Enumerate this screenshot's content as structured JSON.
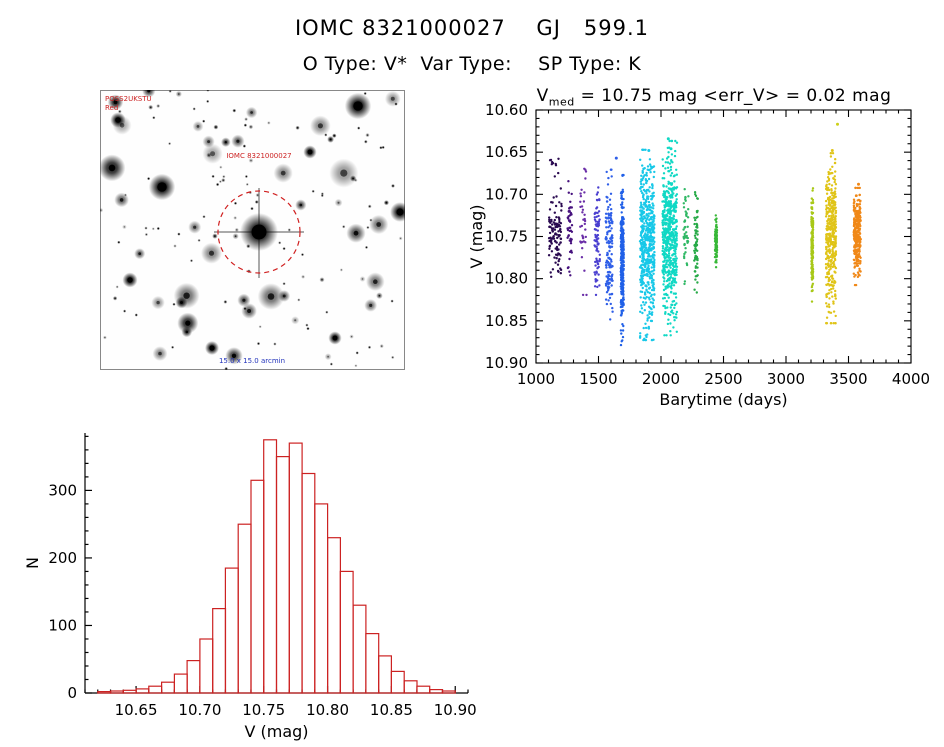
{
  "header": {
    "title": "IOMC 8321000027    GJ   599.1",
    "subtitle": "O Type: V*  Var Type:    SP Type: K"
  },
  "finding_chart": {
    "corner_label_line1": "POSS2UKSTU",
    "corner_label_line2": "Red",
    "target_label": "IOMC 8321000027",
    "bottom_label": "15.0 x 15.0 arcmin",
    "circle_color": "#d02020"
  },
  "chart_data": [
    {
      "type": "scatter",
      "title": {
        "base": "V",
        "sub": "med",
        "rest": " = 10.75 mag <err_V> = 0.02 mag"
      },
      "xlabel": "Barytime (days)",
      "ylabel": "V (mag)",
      "xlim": [
        1000,
        4000
      ],
      "ylim": [
        10.6,
        10.9
      ],
      "y_axis_reversed_magnitude": true,
      "grid": false,
      "legend": "none",
      "xticks": [
        1000,
        1500,
        2000,
        2500,
        3000,
        3500,
        4000
      ],
      "yticks": [
        "10.60",
        "10.65",
        "10.70",
        "10.75",
        "10.80",
        "10.85",
        "10.90"
      ],
      "x_minor_step": 100,
      "y_minor_step": 0.01,
      "clusters": [
        {
          "x": 1155,
          "x_spread": 50,
          "y": 10.745,
          "y_sigma": 0.022,
          "n": 110,
          "color": "#2a0a50"
        },
        {
          "x": 1150,
          "x_spread": 38,
          "y": 10.667,
          "y_sigma": 0.007,
          "n": 10,
          "color": "#2a0a50"
        },
        {
          "x": 1270,
          "x_spread": 18,
          "y": 10.742,
          "y_sigma": 0.024,
          "n": 45,
          "color": "#47127e"
        },
        {
          "x": 1380,
          "x_spread": 26,
          "y": 10.728,
          "y_sigma": 0.038,
          "n": 36,
          "color": "#6b2fa8"
        },
        {
          "x": 1490,
          "x_spread": 22,
          "y": 10.752,
          "y_sigma": 0.028,
          "n": 80,
          "color": "#4a3fd0"
        },
        {
          "x": 1585,
          "x_spread": 28,
          "y": 10.762,
          "y_sigma": 0.038,
          "n": 150,
          "color": "#2f5fe8"
        },
        {
          "x": 1690,
          "x_spread": 12,
          "y": 10.778,
          "y_sigma": 0.042,
          "n": 280,
          "color": "#2060e8"
        },
        {
          "x": 1890,
          "x_spread": 58,
          "y": 10.76,
          "y_sigma": 0.047,
          "n": 550,
          "color": "#18c8e8"
        },
        {
          "x": 2070,
          "x_spread": 58,
          "y": 10.752,
          "y_sigma": 0.048,
          "n": 580,
          "color": "#10d8c4"
        },
        {
          "x": 2200,
          "x_spread": 20,
          "y": 10.748,
          "y_sigma": 0.026,
          "n": 48,
          "color": "#30b865"
        },
        {
          "x": 2280,
          "x_spread": 15,
          "y": 10.76,
          "y_sigma": 0.028,
          "n": 70,
          "color": "#28aa48"
        },
        {
          "x": 2440,
          "x_spread": 8,
          "y": 10.756,
          "y_sigma": 0.014,
          "n": 100,
          "color": "#38b838"
        },
        {
          "x": 3210,
          "x_spread": 7,
          "y": 10.76,
          "y_sigma": 0.028,
          "n": 170,
          "color": "#a8c818"
        },
        {
          "x": 3360,
          "x_spread": 40,
          "y": 10.752,
          "y_sigma": 0.042,
          "n": 400,
          "color": "#e0c418"
        },
        {
          "x": 3570,
          "x_spread": 28,
          "y": 10.75,
          "y_sigma": 0.024,
          "n": 280,
          "color": "#f08818"
        }
      ],
      "outliers": [
        {
          "x": 2058,
          "y": 10.634,
          "color": "#10d8c4"
        },
        {
          "x": 2080,
          "y": 10.646,
          "color": "#10d8c4"
        },
        {
          "x": 1902,
          "y": 10.648,
          "color": "#18c8e8"
        },
        {
          "x": 1642,
          "y": 10.657,
          "color": "#2f5fe8"
        },
        {
          "x": 3412,
          "y": 10.617,
          "color": "#cdd018"
        },
        {
          "x": 3370,
          "y": 10.648,
          "color": "#e0c418"
        },
        {
          "x": 3580,
          "y": 10.688,
          "color": "#f08818"
        }
      ],
      "stats": {
        "v_med_mag": 10.75,
        "err_v_mag": 0.02
      }
    },
    {
      "type": "histogram",
      "xlabel": "V (mag)",
      "ylabel": "N",
      "xlim": [
        10.61,
        10.91
      ],
      "ylim": [
        0,
        385
      ],
      "xticks": [
        "10.65",
        "10.70",
        "10.75",
        "10.80",
        "10.85",
        "10.90"
      ],
      "yticks": [
        0,
        100,
        200,
        300
      ],
      "bin_start": 10.62,
      "bin_width": 0.01,
      "counts": [
        2,
        3,
        4,
        6,
        10,
        16,
        28,
        48,
        80,
        125,
        185,
        250,
        315,
        375,
        350,
        370,
        325,
        280,
        230,
        180,
        130,
        88,
        55,
        32,
        18,
        10,
        5,
        3
      ],
      "color": "#cc2222"
    }
  ]
}
